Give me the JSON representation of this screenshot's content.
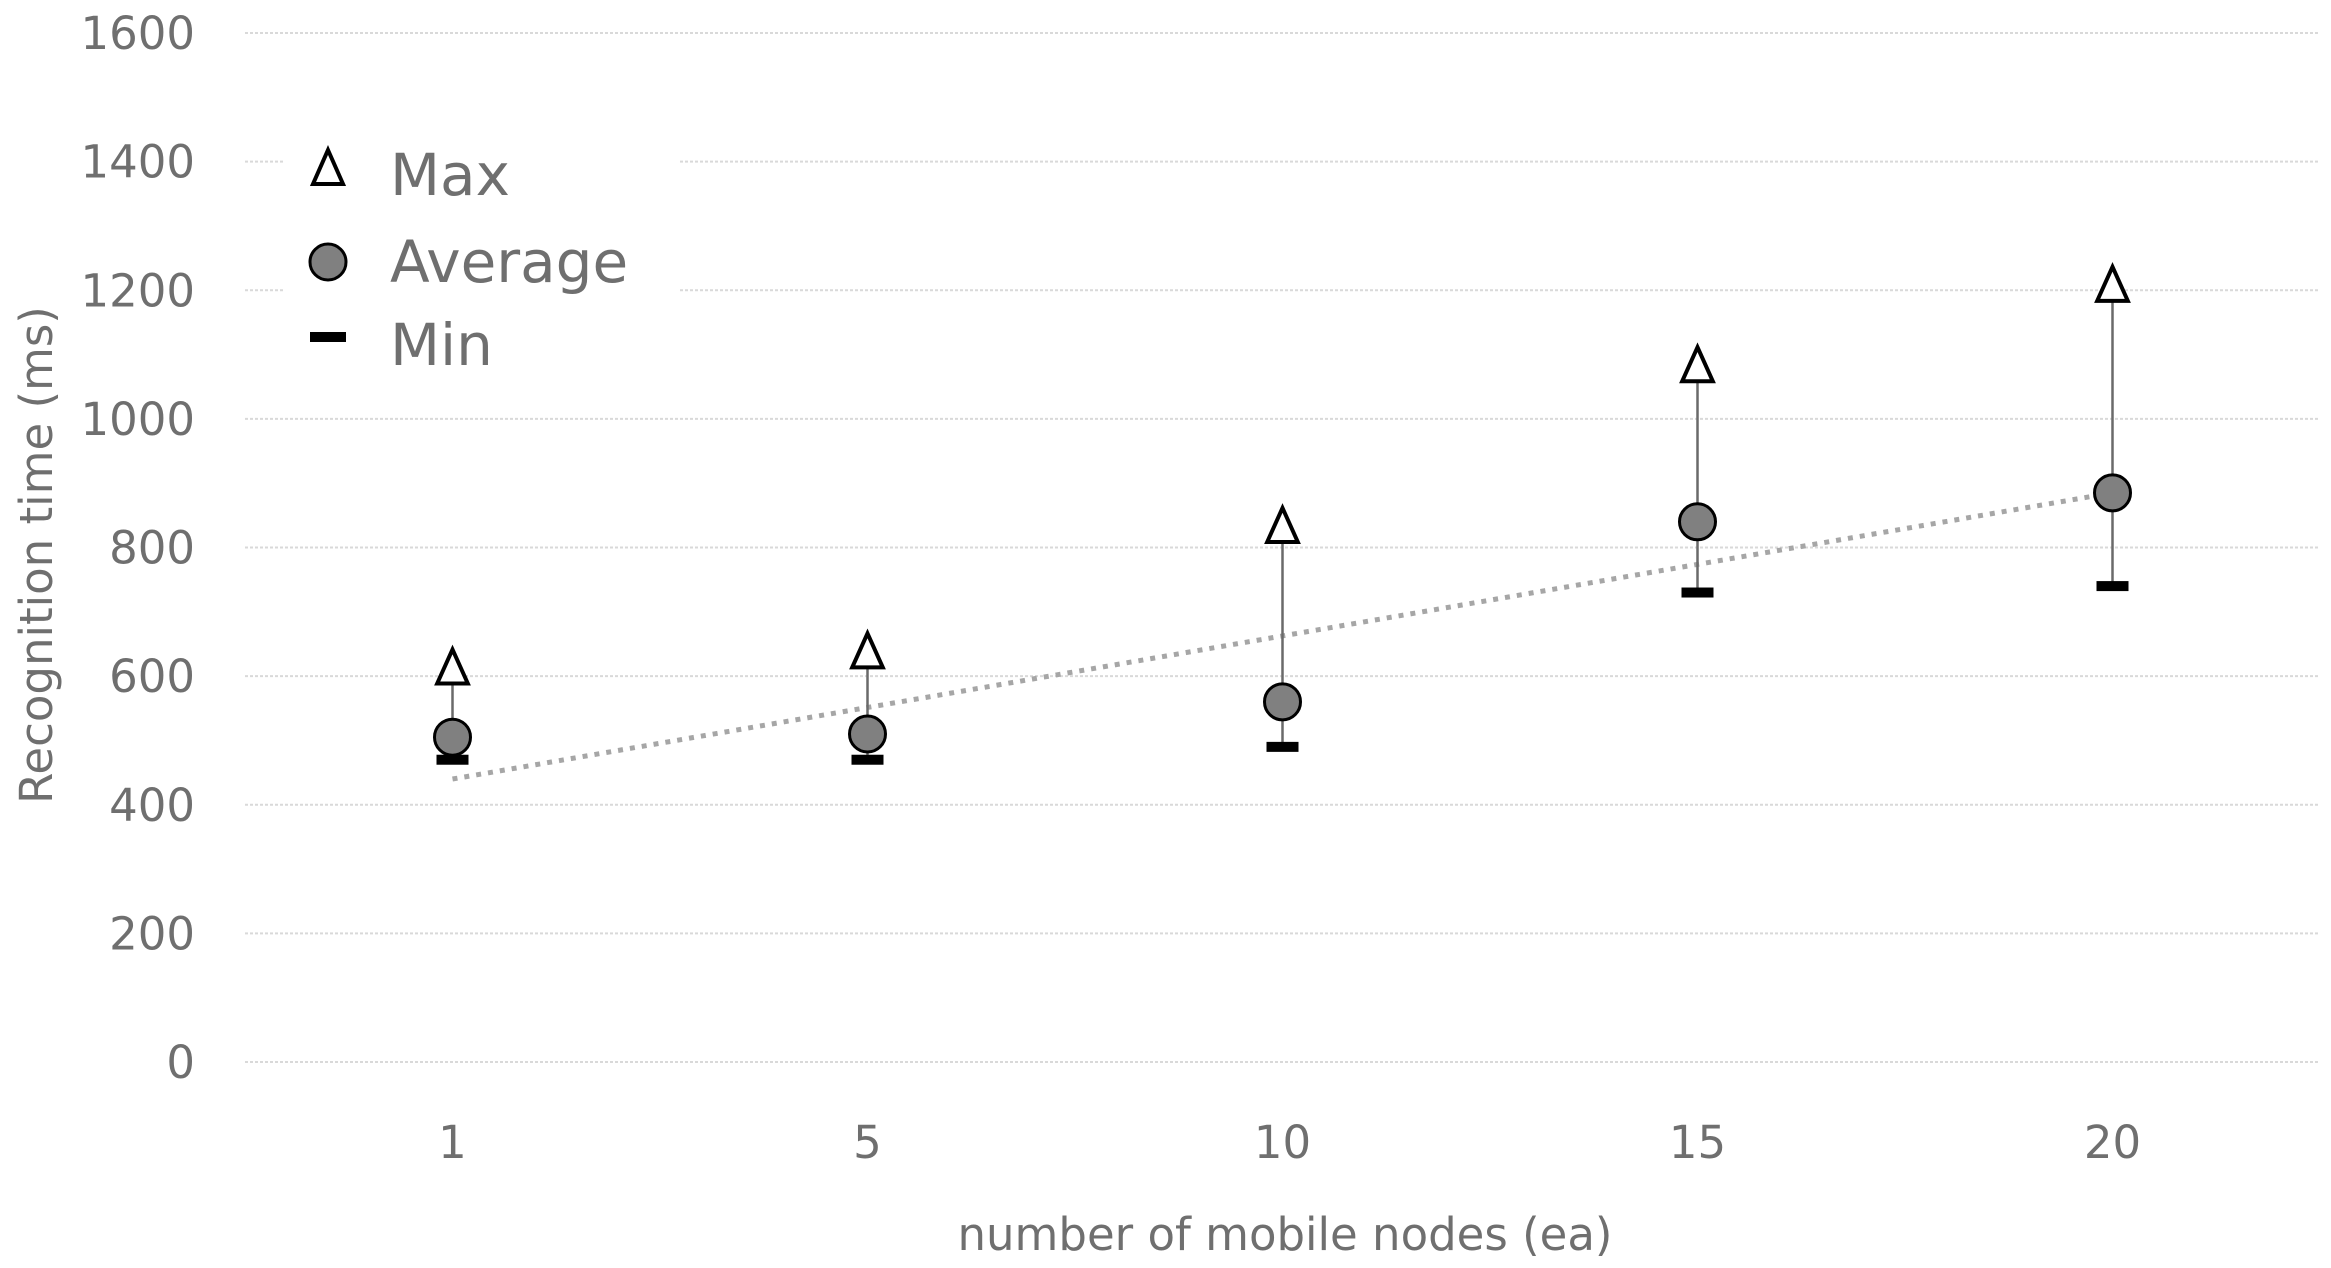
{
  "chart_data": {
    "type": "scatter",
    "title": "",
    "xlabel": "number of mobile nodes (ea)",
    "ylabel": "Recognition time (ms)",
    "categories": [
      "1",
      "5",
      "10",
      "15",
      "20"
    ],
    "ylim": [
      0,
      1600
    ],
    "yticks": [
      "0",
      "200",
      "400",
      "600",
      "800",
      "1000",
      "1200",
      "1400",
      "1600"
    ],
    "grid": true,
    "legend_position": "top-left",
    "series": [
      {
        "name": "Max",
        "marker": "triangle-open",
        "values": [
          615,
          640,
          835,
          1085,
          1210
        ]
      },
      {
        "name": "Average",
        "marker": "circle-gray",
        "values": [
          505,
          510,
          560,
          840,
          885
        ]
      },
      {
        "name": "Min",
        "marker": "dash",
        "values": [
          470,
          470,
          490,
          730,
          740
        ]
      }
    ],
    "trendline": {
      "style": "dotted",
      "color": "#a6a6a6",
      "start": 440,
      "end": 885
    },
    "colors": {
      "grid": "#d9d9d9",
      "text": "#6f6f6f",
      "avg_fill": "#808080",
      "marker_stroke": "#000000"
    }
  }
}
